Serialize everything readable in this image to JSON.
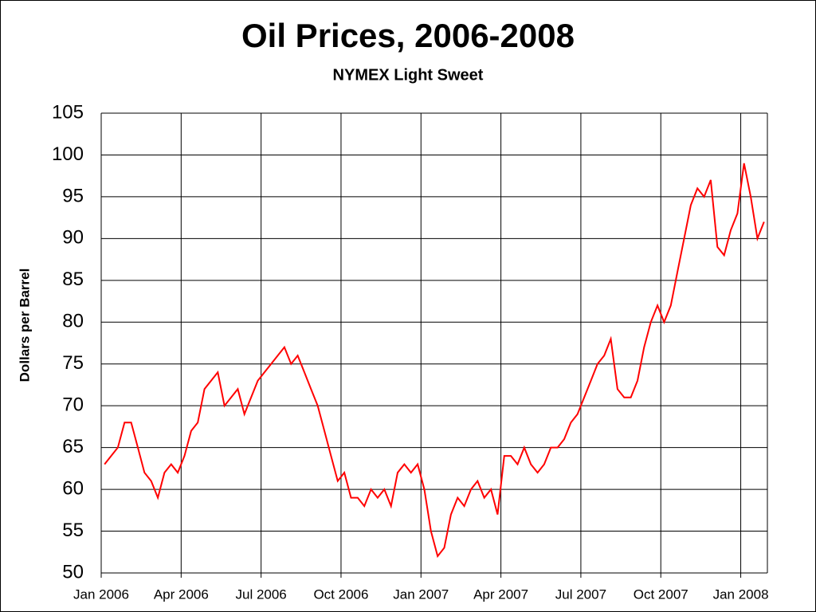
{
  "chart_data": {
    "type": "line",
    "title": "Oil Prices, 2006-2008",
    "subtitle": "NYMEX Light Sweet",
    "ylabel": "Dollars per Barrel",
    "x": [
      "2006-01",
      "2006-01",
      "2006-01",
      "2006-01",
      "2006-02",
      "2006-02",
      "2006-02",
      "2006-02",
      "2006-03",
      "2006-03",
      "2006-03",
      "2006-03",
      "2006-04",
      "2006-04",
      "2006-04",
      "2006-04",
      "2006-05",
      "2006-05",
      "2006-05",
      "2006-05",
      "2006-06",
      "2006-06",
      "2006-06",
      "2006-06",
      "2006-07",
      "2006-07",
      "2006-07",
      "2006-07",
      "2006-08",
      "2006-08",
      "2006-08",
      "2006-08",
      "2006-09",
      "2006-09",
      "2006-09",
      "2006-09",
      "2006-10",
      "2006-10",
      "2006-10",
      "2006-10",
      "2006-11",
      "2006-11",
      "2006-11",
      "2006-11",
      "2006-12",
      "2006-12",
      "2006-12",
      "2006-12",
      "2007-01",
      "2007-01",
      "2007-01",
      "2007-01",
      "2007-02",
      "2007-02",
      "2007-02",
      "2007-02",
      "2007-03",
      "2007-03",
      "2007-03",
      "2007-03",
      "2007-04",
      "2007-04",
      "2007-04",
      "2007-04",
      "2007-05",
      "2007-05",
      "2007-05",
      "2007-05",
      "2007-06",
      "2007-06",
      "2007-06",
      "2007-06",
      "2007-07",
      "2007-07",
      "2007-07",
      "2007-07",
      "2007-08",
      "2007-08",
      "2007-08",
      "2007-08",
      "2007-09",
      "2007-09",
      "2007-09",
      "2007-09",
      "2007-10",
      "2007-10",
      "2007-10",
      "2007-10",
      "2007-11",
      "2007-11",
      "2007-11",
      "2007-11",
      "2007-12",
      "2007-12",
      "2007-12",
      "2007-12",
      "2008-01",
      "2008-01",
      "2008-01",
      "2008-01"
    ],
    "series": [
      {
        "name": "NYMEX Light Sweet",
        "color": "#ff0000",
        "values": [
          63,
          64,
          65,
          68,
          68,
          65,
          62,
          61,
          59,
          62,
          63,
          62,
          64,
          67,
          68,
          72,
          73,
          74,
          70,
          71,
          72,
          69,
          71,
          73,
          74,
          75,
          76,
          77,
          75,
          76,
          74,
          72,
          70,
          67,
          64,
          61,
          62,
          59,
          59,
          58,
          60,
          59,
          60,
          58,
          62,
          63,
          62,
          63,
          60,
          55,
          52,
          53,
          57,
          59,
          58,
          60,
          61,
          59,
          60,
          57,
          64,
          64,
          63,
          65,
          63,
          62,
          63,
          65,
          65,
          66,
          68,
          69,
          71,
          73,
          75,
          76,
          78,
          72,
          71,
          71,
          73,
          77,
          80,
          82,
          80,
          82,
          86,
          90,
          94,
          96,
          95,
          97,
          89,
          88,
          91,
          93,
          99,
          95,
          90,
          92
        ]
      }
    ],
    "xlim": [
      "2006-01",
      "2008-02"
    ],
    "xticks": [
      {
        "value": "2006-01",
        "label": "Jan 2006"
      },
      {
        "value": "2006-04",
        "label": "Apr 2006"
      },
      {
        "value": "2006-07",
        "label": "Jul 2006"
      },
      {
        "value": "2006-10",
        "label": "Oct 2006"
      },
      {
        "value": "2007-01",
        "label": "Jan 2007"
      },
      {
        "value": "2007-04",
        "label": "Apr 2007"
      },
      {
        "value": "2007-07",
        "label": "Jul 2007"
      },
      {
        "value": "2007-10",
        "label": "Oct 2007"
      },
      {
        "value": "2008-01",
        "label": "Jan 2008"
      }
    ],
    "ylim": [
      50,
      105
    ],
    "yticks": [
      50,
      55,
      60,
      65,
      70,
      75,
      80,
      85,
      90,
      95,
      100,
      105
    ],
    "grid": true
  }
}
